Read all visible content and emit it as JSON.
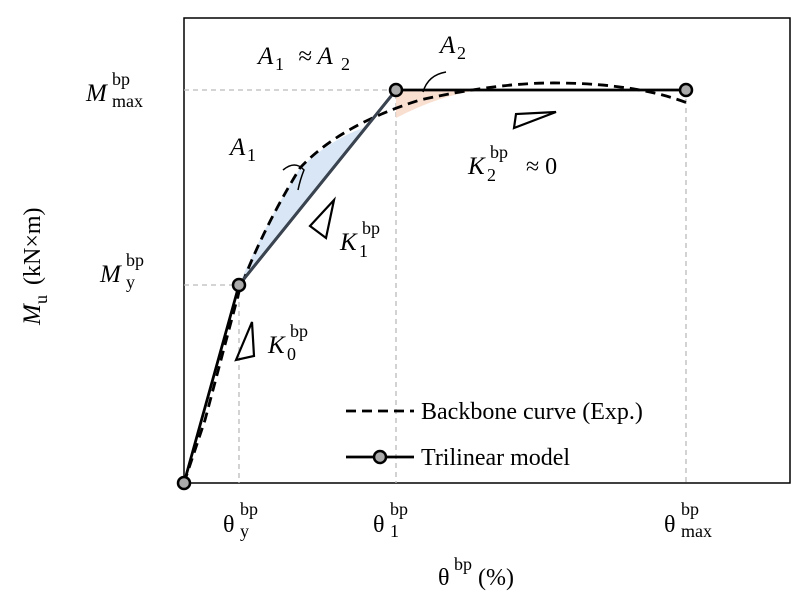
{
  "labels": {
    "m_max": {
      "base": "M",
      "sup": "bp",
      "sub": "max"
    },
    "m_y": {
      "base": "M",
      "sup": "bp",
      "sub": "y"
    },
    "theta_y": {
      "base": "θ",
      "sup": "bp",
      "sub": "y"
    },
    "theta_1": {
      "base": "θ",
      "sup": "bp",
      "sub": "1"
    },
    "theta_max": {
      "base": "θ",
      "sup": "bp",
      "sub": "max"
    },
    "x_axis": {
      "base": "θ",
      "sup": "bp",
      "rest": "(%)"
    },
    "y_axis": {
      "base": "M",
      "sub": "u",
      "rest": "(kN×m)"
    },
    "area_eq": {
      "a": "A",
      "a_sub": "1",
      "mid": "≈ A",
      "b_sub": "2"
    },
    "area_2": {
      "base": "A",
      "sub": "2"
    },
    "area_1": {
      "base": "A",
      "sub": "1"
    },
    "k1": {
      "base": "K",
      "sup": "bp",
      "sub": "1"
    },
    "k0": {
      "base": "K",
      "sup": "bp",
      "sub": "0"
    },
    "k2": {
      "base": "K",
      "sup": "bp",
      "sub": "2",
      "rest": "≈ 0"
    }
  },
  "legend": [
    "Backbone curve (Exp.)",
    "Trilinear model"
  ]
}
